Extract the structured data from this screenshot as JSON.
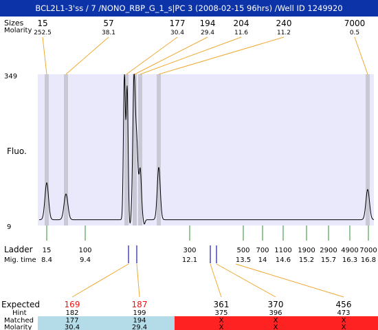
{
  "title": "BCL2L1-3'ss / 7 /NONO_RBP_G_1_s|PC 3 (2008-02-15 96hrs) /Well ID 1249920",
  "labels": {
    "sizes": "Sizes",
    "molarity": "Molarity",
    "y_max": "349",
    "y_min": "9",
    "fluo": "Fluo.",
    "ladder": "Ladder",
    "mig_time": "Mig. time",
    "expected": "Expected",
    "hint": "Hint",
    "matched": "Matched",
    "molarity_bottom": "Molarity"
  },
  "chart_data": {
    "type": "line",
    "ylabel": "Fluo.",
    "ylim": [
      9,
      349
    ],
    "top_peaks": [
      {
        "size": "15",
        "molarity": "252.5"
      },
      {
        "size": "57",
        "molarity": "38.1"
      },
      {
        "size": "177",
        "molarity": "30.4"
      },
      {
        "size": "194",
        "molarity": "29.4"
      },
      {
        "size": "204",
        "molarity": "11.6"
      },
      {
        "size": "240",
        "molarity": "11.2"
      },
      {
        "size": "7000",
        "molarity": "0.5"
      }
    ],
    "ladder": [
      {
        "size": "15",
        "time": "8.4"
      },
      {
        "size": "100",
        "time": "9.4"
      },
      {
        "size": "300",
        "time": "12.1"
      },
      {
        "size": "500",
        "time": "13.5"
      },
      {
        "size": "700",
        "time": "14"
      },
      {
        "size": "1100",
        "time": "14.6"
      },
      {
        "size": "1900",
        "time": "15.2"
      },
      {
        "size": "2900",
        "time": "15.7"
      },
      {
        "size": "4900",
        "time": "16.3"
      },
      {
        "size": "7000",
        "time": "16.8"
      }
    ],
    "expected": [
      {
        "expected": "169",
        "hint": "182",
        "matched": "177",
        "molarity": "30.4",
        "is_matched": true
      },
      {
        "expected": "187",
        "hint": "199",
        "matched": "194",
        "molarity": "29.4",
        "is_matched": true
      },
      {
        "expected": "361",
        "hint": "375",
        "matched": "X",
        "molarity": "X",
        "is_matched": false
      },
      {
        "expected": "370",
        "hint": "396",
        "matched": "X",
        "molarity": "X",
        "is_matched": false
      },
      {
        "expected": "456",
        "hint": "473",
        "matched": "X",
        "molarity": "X",
        "is_matched": false
      }
    ],
    "colors": {
      "title_bg": "#0c34a8",
      "plot_bg": "#e9e9fb",
      "band": "#c9c9d6",
      "connector": "#f0a830",
      "ladder_tick": "#2e8b2e",
      "expected_tick": "#1a1aaa",
      "expected_red_text": "#ee1111",
      "matched_bg": "#b4dce8",
      "unmatched_bg": "#ff2222"
    }
  }
}
